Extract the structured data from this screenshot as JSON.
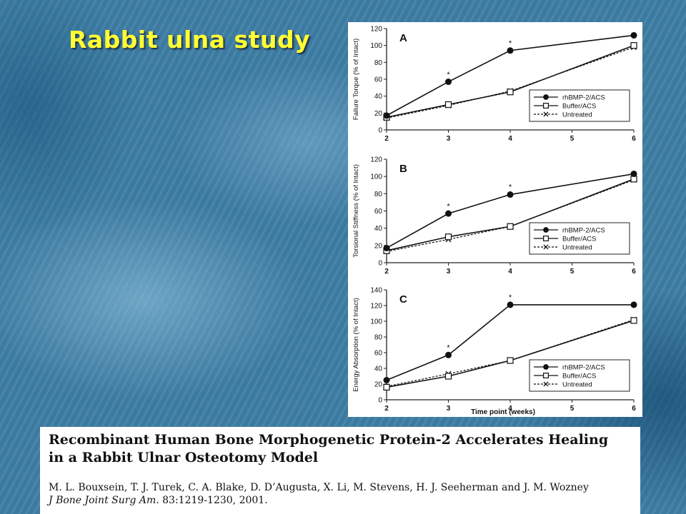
{
  "slide": {
    "title": "Rabbit ulna study"
  },
  "citation": {
    "title": "Recombinant Human Bone Morphogenetic Protein-2 Accelerates Healing in a Rabbit Ulnar Osteotomy Model",
    "authors": "M. L. Bouxsein, T. J. Turek, C. A. Blake, D. D’Augusta, X. Li, M. Stevens, H. J. Seeherman and J. M. Wozney",
    "journal": "J Bone Joint Surg Am.",
    "reference": " 83:1219-1230, 2001."
  },
  "chart_data": [
    {
      "type": "line",
      "panel_label": "A",
      "ylabel": "Failure Torque (% of Intact)",
      "xlabel": "",
      "x": [
        2,
        3,
        4,
        6
      ],
      "xlim": [
        2,
        6
      ],
      "ylim": [
        0,
        120
      ],
      "xticks": [
        2,
        3,
        4,
        5,
        6
      ],
      "yticks": [
        0,
        20,
        40,
        60,
        80,
        100,
        120
      ],
      "series": [
        {
          "name": "rhBMP-2/ACS",
          "marker": "filled-circle",
          "line": "solid",
          "values": [
            17,
            57,
            94,
            112
          ]
        },
        {
          "name": "Buffer/ACS",
          "marker": "open-square",
          "line": "solid",
          "values": [
            15,
            30,
            45,
            100
          ]
        },
        {
          "name": "Untreated",
          "marker": "x",
          "line": "dashed",
          "values": [
            14,
            29,
            46,
            98
          ]
        }
      ],
      "significance_marks": [
        {
          "x": 3,
          "y": 66,
          "label": "*"
        },
        {
          "x": 4,
          "y": 103,
          "label": "*"
        }
      ],
      "legend_position": "lower-right"
    },
    {
      "type": "line",
      "panel_label": "B",
      "ylabel": "Torsional Stiffness (% of Intact)",
      "xlabel": "",
      "x": [
        2,
        3,
        4,
        6
      ],
      "xlim": [
        2,
        6
      ],
      "ylim": [
        0,
        120
      ],
      "xticks": [
        2,
        3,
        4,
        5,
        6
      ],
      "yticks": [
        0,
        20,
        40,
        60,
        80,
        100,
        120
      ],
      "series": [
        {
          "name": "rhBMP-2/ACS",
          "marker": "filled-circle",
          "line": "solid",
          "values": [
            17,
            57,
            79,
            103
          ]
        },
        {
          "name": "Buffer/ACS",
          "marker": "open-square",
          "line": "solid",
          "values": [
            14,
            30,
            42,
            97
          ]
        },
        {
          "name": "Untreated",
          "marker": "x",
          "line": "dashed",
          "values": [
            13,
            27,
            42,
            96
          ]
        }
      ],
      "significance_marks": [
        {
          "x": 3,
          "y": 66,
          "label": "*"
        },
        {
          "x": 4,
          "y": 88,
          "label": "*"
        }
      ],
      "legend_position": "lower-right"
    },
    {
      "type": "line",
      "panel_label": "C",
      "ylabel": "Energy Absorption (% of Intact)",
      "xlabel": "Time point (weeks)",
      "x": [
        2,
        3,
        4,
        6
      ],
      "xlim": [
        2,
        6
      ],
      "ylim": [
        0,
        140
      ],
      "xticks": [
        2,
        3,
        4,
        5,
        6
      ],
      "yticks": [
        0,
        20,
        40,
        60,
        80,
        100,
        120,
        140
      ],
      "series": [
        {
          "name": "rhBMP-2/ACS",
          "marker": "filled-circle",
          "line": "solid",
          "values": [
            25,
            57,
            121,
            121
          ]
        },
        {
          "name": "Buffer/ACS",
          "marker": "open-square",
          "line": "solid",
          "values": [
            16,
            30,
            50,
            101
          ]
        },
        {
          "name": "Untreated",
          "marker": "x",
          "line": "dashed",
          "values": [
            17,
            33,
            50,
            102
          ]
        }
      ],
      "significance_marks": [
        {
          "x": 3,
          "y": 67,
          "label": "*"
        },
        {
          "x": 4,
          "y": 131,
          "label": "*"
        }
      ],
      "legend_position": "lower-right"
    }
  ]
}
